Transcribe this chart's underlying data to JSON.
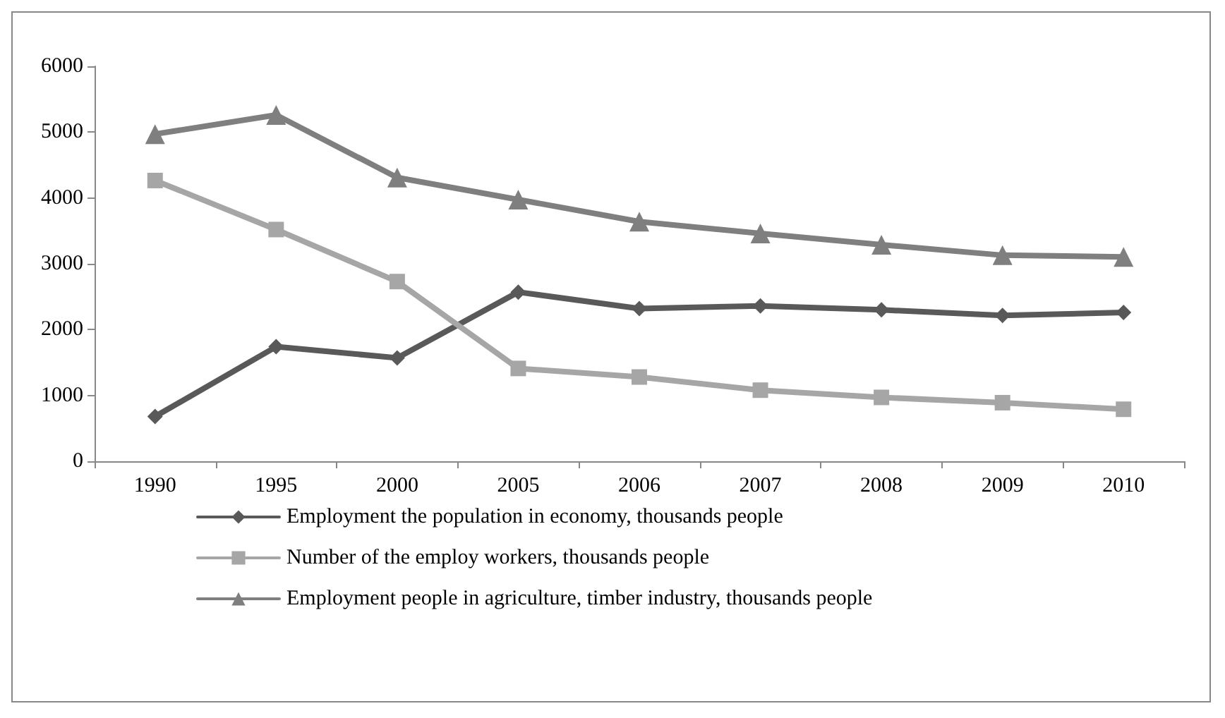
{
  "chart_data": {
    "type": "line",
    "categories": [
      "1990",
      "1995",
      "2000",
      "2005",
      "2006",
      "2007",
      "2008",
      "2009",
      "2010"
    ],
    "series": [
      {
        "name": "Employment the population in economy, thousands people",
        "color": "#595959",
        "marker": "diamond",
        "values": [
          680,
          1740,
          1570,
          2570,
          2320,
          2360,
          2300,
          2215,
          2260
        ]
      },
      {
        "name": "Number of the employ workers, thousands people",
        "color": "#a6a6a6",
        "marker": "square",
        "values": [
          4265,
          3520,
          2730,
          1410,
          1280,
          1080,
          970,
          890,
          790
        ]
      },
      {
        "name": "Employment people in agriculture, timber industry, thousands people",
        "color": "#7f7f7f",
        "marker": "triangle",
        "values": [
          4970,
          5260,
          4310,
          3975,
          3640,
          3460,
          3290,
          3130,
          3105
        ]
      }
    ],
    "ylim": [
      0,
      6000
    ],
    "yticks": [
      0,
      1000,
      2000,
      3000,
      4000,
      5000,
      6000
    ],
    "grid": false,
    "legend": "bottom",
    "line_style": "solid"
  }
}
